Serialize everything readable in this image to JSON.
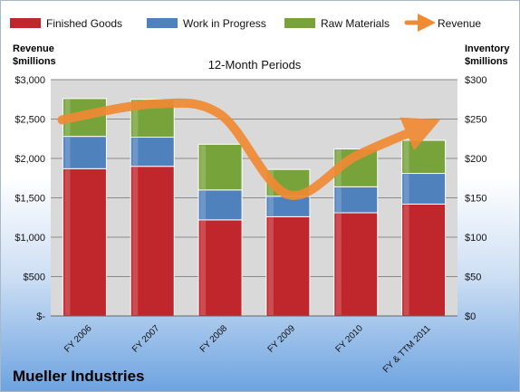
{
  "company_name": "Mueller Industries",
  "colors": {
    "finished_goods": "#c0272d",
    "work_in_progress": "#4f81bd",
    "raw_materials": "#77a33a",
    "revenue": "#f08a33"
  },
  "chart_data": {
    "type": "bar",
    "stacked": true,
    "title": "12-Month Periods",
    "ylabel_left": [
      "Revenue",
      "$millions"
    ],
    "ylabel_right": [
      "Inventory",
      "$millions"
    ],
    "categories": [
      "FY 2006",
      "FY 2007",
      "FY 2008",
      "FY 2009",
      "FY 2010",
      "FY & TTM 2011"
    ],
    "series": [
      {
        "name": "Finished Goods",
        "axis": "right",
        "values": [
          187,
          190,
          122,
          126,
          131,
          142
        ]
      },
      {
        "name": "Work in Progress",
        "axis": "right",
        "values": [
          41,
          37,
          38,
          26,
          33,
          39
        ]
      },
      {
        "name": "Raw Materials",
        "axis": "right",
        "values": [
          48,
          48,
          58,
          34,
          48,
          42
        ]
      }
    ],
    "line_series": {
      "name": "Revenue",
      "axis": "left",
      "values": [
        2490,
        2690,
        2560,
        1540,
        2030,
        2400
      ]
    },
    "ylim_left": [
      0,
      3000
    ],
    "ylim_right": [
      0,
      300
    ],
    "yticks_left": [
      "$-",
      "$500",
      "$1,000",
      "$1,500",
      "$2,000",
      "$2,500",
      "$3,000"
    ],
    "yticks_right": [
      "$0",
      "$50",
      "$100",
      "$150",
      "$200",
      "$250",
      "$300"
    ],
    "legend": [
      "Finished Goods",
      "Work in Progress",
      "Raw Materials",
      "Revenue"
    ],
    "legend_position": "top",
    "grid": true
  }
}
